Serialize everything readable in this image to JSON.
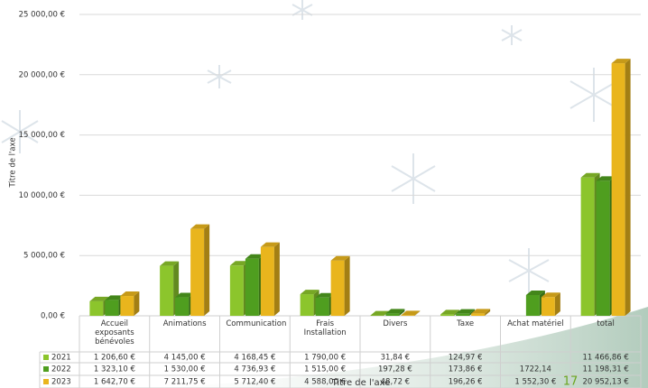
{
  "chart_data": {
    "type": "bar3d",
    "y_label": "Titre de l'axe",
    "x_label": "Titre de l'axe",
    "annotation": "17",
    "categories": [
      "Accueil exposants bénévoles",
      "Animations",
      "Communication",
      "Frais Installation",
      "Divers",
      "Taxe",
      "Achat matériel",
      "total"
    ],
    "series": [
      {
        "name": "2021",
        "color": "#8cc52c",
        "values": [
          1206.6,
          4145.0,
          4168.45,
          1790.0,
          31.84,
          124.97,
          null,
          11466.86
        ],
        "value_labels": [
          "1 206,60 €",
          "4 145,00 €",
          "4 168,45 €",
          "1 790,00 €",
          "31,84 €",
          "124,97 €",
          null,
          "11 466,86 €"
        ]
      },
      {
        "name": "2022",
        "color": "#4f9e1f",
        "values": [
          1323.1,
          1530.0,
          4736.93,
          1515.0,
          197.28,
          173.86,
          1722.14,
          11198.31
        ],
        "value_labels": [
          "1 323,10 €",
          "1 530,00 €",
          "4 736,93 €",
          "1 515,00 €",
          "197,28 €",
          "173,86 €",
          "1722,14",
          "11 198,31 €"
        ]
      },
      {
        "name": "2023",
        "color": "#e9b51d",
        "values": [
          1642.7,
          7211.75,
          5712.4,
          4588.0,
          48.72,
          196.26,
          1552.3,
          20952.13
        ],
        "value_labels": [
          "1 642,70 €",
          "7 211,75 €",
          "5 712,40 €",
          "4 588,00 €",
          "48,72 €",
          "196,26 €",
          "1 552,30 €",
          "20 952,13 €"
        ]
      }
    ],
    "ylim": [
      0,
      25000
    ],
    "yticks": [
      {
        "value": 0,
        "label": "0,00 €"
      },
      {
        "value": 5000,
        "label": "5 000,00 €"
      },
      {
        "value": 10000,
        "label": "10 000,00 €"
      },
      {
        "value": 15000,
        "label": "15 000,00 €"
      },
      {
        "value": 20000,
        "label": "20 000,00 €"
      },
      {
        "value": 25000,
        "label": "25 000,00 €"
      }
    ],
    "grid": true
  }
}
